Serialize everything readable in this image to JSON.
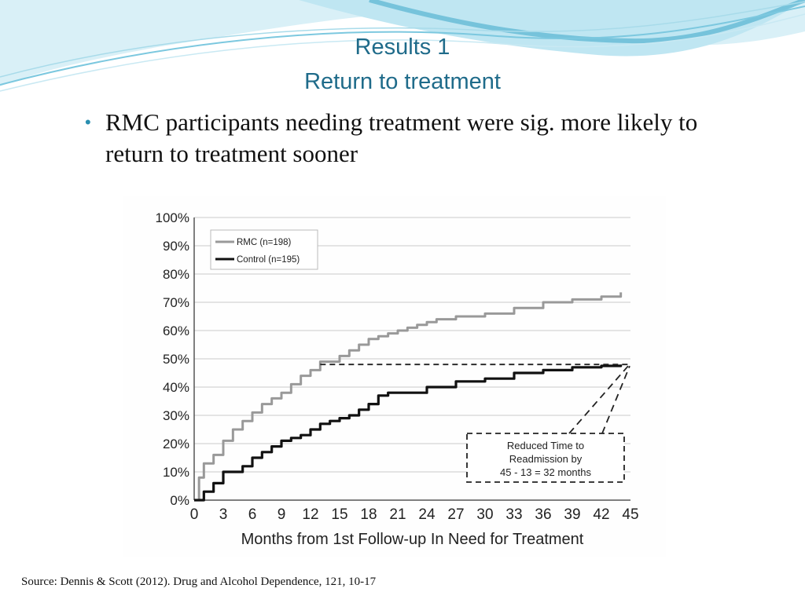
{
  "slide": {
    "title": "Results 1",
    "subtitle": "Return to treatment",
    "bullet": "RMC participants needing treatment were sig. more likely to return to treatment sooner",
    "source": "Source: Dennis & Scott (2012). Drug and Alcohol Dependence, 121, 10-17",
    "colors": {
      "title": "#1f6b8a",
      "wave_dark": "#3aa6c9",
      "wave_light": "#b8e2ef"
    }
  },
  "chart_data": {
    "type": "line",
    "title": "",
    "xlabel": "Months from 1st Follow-up In Need for Treatment",
    "ylabel": "",
    "xlim": [
      0,
      45
    ],
    "ylim": [
      0,
      100
    ],
    "x_ticks": [
      "0",
      "3",
      "6",
      "9",
      "12",
      "15",
      "18",
      "21",
      "24",
      "27",
      "30",
      "33",
      "36",
      "39",
      "42",
      "45"
    ],
    "y_ticks": [
      "0%",
      "10%",
      "20%",
      "30%",
      "40%",
      "50%",
      "60%",
      "70%",
      "80%",
      "90%",
      "100%"
    ],
    "grid": "horizontal",
    "legend_position": "top-left",
    "series": [
      {
        "name": "RMC (n=198)",
        "color": "#999999",
        "points": [
          [
            0,
            0
          ],
          [
            0.5,
            8
          ],
          [
            1,
            13
          ],
          [
            2,
            16
          ],
          [
            3,
            21
          ],
          [
            4,
            25
          ],
          [
            5,
            28
          ],
          [
            6,
            31
          ],
          [
            7,
            34
          ],
          [
            8,
            36
          ],
          [
            9,
            38
          ],
          [
            10,
            41
          ],
          [
            11,
            44
          ],
          [
            12,
            46
          ],
          [
            13,
            49
          ],
          [
            14,
            49
          ],
          [
            15,
            51
          ],
          [
            16,
            53
          ],
          [
            17,
            55
          ],
          [
            18,
            57
          ],
          [
            19,
            58
          ],
          [
            20,
            59
          ],
          [
            21,
            60
          ],
          [
            22,
            61
          ],
          [
            23,
            62
          ],
          [
            24,
            63
          ],
          [
            25,
            64
          ],
          [
            27,
            65
          ],
          [
            30,
            66
          ],
          [
            33,
            68
          ],
          [
            36,
            70
          ],
          [
            39,
            71
          ],
          [
            42,
            72
          ],
          [
            44,
            73.5
          ]
        ]
      },
      {
        "name": "Control (n=195)",
        "color": "#111111",
        "points": [
          [
            0,
            0
          ],
          [
            1,
            3
          ],
          [
            2,
            6
          ],
          [
            3,
            10
          ],
          [
            4,
            10
          ],
          [
            5,
            12
          ],
          [
            6,
            15
          ],
          [
            7,
            17
          ],
          [
            8,
            19
          ],
          [
            9,
            21
          ],
          [
            10,
            22
          ],
          [
            11,
            23
          ],
          [
            12,
            25
          ],
          [
            13,
            27
          ],
          [
            14,
            28
          ],
          [
            15,
            29
          ],
          [
            16,
            30
          ],
          [
            17,
            32
          ],
          [
            18,
            34
          ],
          [
            19,
            37
          ],
          [
            20,
            38
          ],
          [
            21,
            38
          ],
          [
            24,
            40
          ],
          [
            27,
            42
          ],
          [
            30,
            43
          ],
          [
            33,
            45
          ],
          [
            36,
            46
          ],
          [
            39,
            47
          ],
          [
            42,
            47.5
          ],
          [
            44,
            48
          ]
        ]
      }
    ],
    "annotation": {
      "text_lines": [
        "Reduced Time to",
        "Readmission by",
        "45 - 13 = 32 months"
      ],
      "reference_level": 48,
      "rmc_month": 13,
      "control_month": 45
    }
  }
}
